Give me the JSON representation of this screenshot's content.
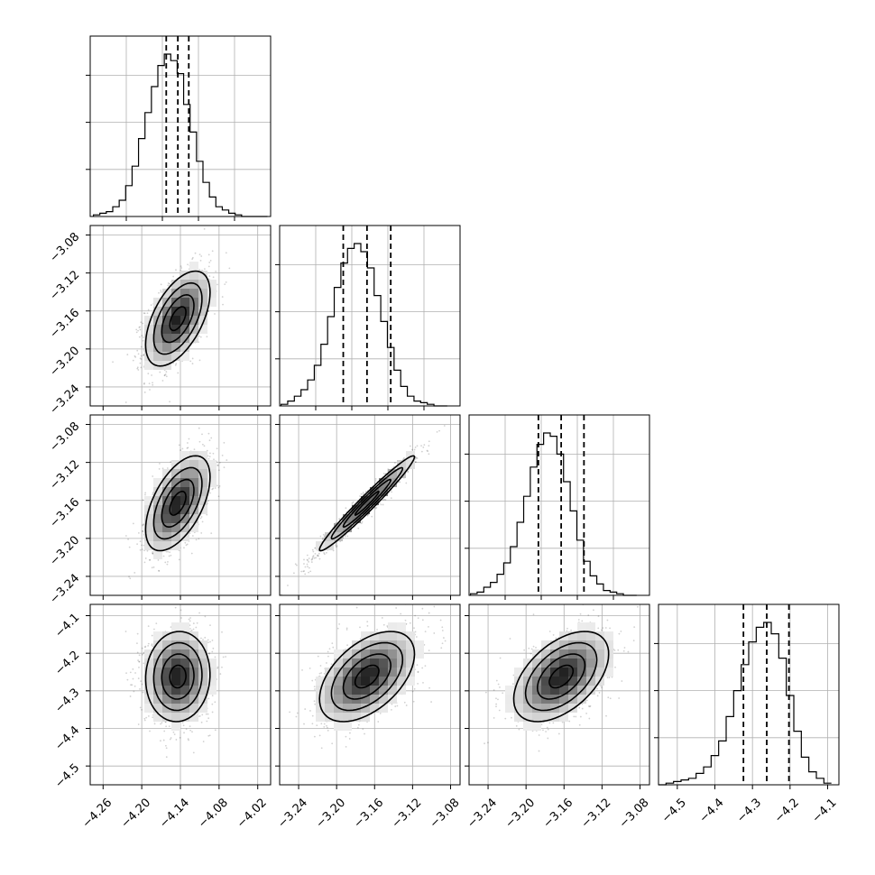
{
  "figure": {
    "type": "corner"
  },
  "chart_data": [
    {
      "type": "histogram",
      "panel": "diag-0",
      "variable_index": 0,
      "xlim": [
        -4.28,
        -4.0
      ],
      "bins": [
        -4.27,
        -4.26,
        -4.25,
        -4.24,
        -4.23,
        -4.22,
        -4.21,
        -4.2,
        -4.19,
        -4.18,
        -4.17,
        -4.16,
        -4.15,
        -4.14,
        -4.13,
        -4.12,
        -4.11,
        -4.1,
        -4.09,
        -4.08,
        -4.07,
        -4.06,
        -4.05,
        -4.04,
        -4.03,
        -4.02,
        -4.01
      ],
      "counts": [
        0.01,
        0.02,
        0.03,
        0.06,
        0.1,
        0.19,
        0.31,
        0.48,
        0.64,
        0.8,
        0.93,
        1.0,
        0.96,
        0.88,
        0.69,
        0.52,
        0.34,
        0.21,
        0.12,
        0.06,
        0.04,
        0.02,
        0.01,
        0.0,
        0.0,
        0.0,
        0.0
      ],
      "quantiles": [
        -4.162,
        -4.144,
        -4.127
      ],
      "x_ticks": [],
      "y_ticks": [
        0.29,
        0.58,
        0.87
      ]
    },
    {
      "type": "histogram",
      "panel": "diag-1",
      "variable_index": 1,
      "xlim": [
        -3.26,
        -3.07
      ],
      "bins": [
        -3.255,
        -3.248,
        -3.241,
        -3.234,
        -3.227,
        -3.22,
        -3.213,
        -3.206,
        -3.199,
        -3.192,
        -3.185,
        -3.178,
        -3.171,
        -3.164,
        -3.157,
        -3.15,
        -3.143,
        -3.136,
        -3.129,
        -3.122,
        -3.115,
        -3.108,
        -3.101,
        -3.094,
        -3.087,
        -3.08
      ],
      "counts": [
        0.01,
        0.03,
        0.06,
        0.1,
        0.16,
        0.25,
        0.38,
        0.55,
        0.73,
        0.88,
        0.97,
        1.0,
        0.95,
        0.85,
        0.68,
        0.52,
        0.36,
        0.22,
        0.12,
        0.06,
        0.03,
        0.02,
        0.01,
        0.0,
        0.0
      ],
      "quantiles": [
        -3.193,
        -3.168,
        -3.143
      ],
      "x_ticks": [],
      "y_ticks": [
        0.29,
        0.58,
        0.87
      ]
    },
    {
      "type": "histogram",
      "panel": "diag-2",
      "variable_index": 2,
      "xlim": [
        -3.26,
        -3.07
      ],
      "bins": [
        -3.255,
        -3.248,
        -3.241,
        -3.234,
        -3.227,
        -3.22,
        -3.213,
        -3.206,
        -3.199,
        -3.192,
        -3.185,
        -3.178,
        -3.171,
        -3.164,
        -3.157,
        -3.15,
        -3.143,
        -3.136,
        -3.129,
        -3.122,
        -3.115,
        -3.108,
        -3.101,
        -3.094,
        -3.087,
        -3.08
      ],
      "counts": [
        0.01,
        0.02,
        0.05,
        0.08,
        0.13,
        0.2,
        0.3,
        0.45,
        0.61,
        0.79,
        0.93,
        1.0,
        0.98,
        0.87,
        0.7,
        0.52,
        0.34,
        0.21,
        0.12,
        0.07,
        0.03,
        0.02,
        0.01,
        0.0,
        0.0
      ],
      "quantiles": [
        -3.187,
        -3.163,
        -3.139
      ],
      "x_ticks": [],
      "y_ticks": [
        0.29,
        0.58,
        0.87
      ]
    },
    {
      "type": "histogram",
      "panel": "diag-3",
      "variable_index": 3,
      "xlim": [
        -4.55,
        -4.07
      ],
      "bins": [
        -4.54,
        -4.52,
        -4.5,
        -4.48,
        -4.46,
        -4.44,
        -4.42,
        -4.4,
        -4.38,
        -4.36,
        -4.34,
        -4.32,
        -4.3,
        -4.28,
        -4.26,
        -4.24,
        -4.22,
        -4.2,
        -4.18,
        -4.16,
        -4.14,
        -4.12,
        -4.1,
        -4.08
      ],
      "counts": [
        0.0,
        0.01,
        0.02,
        0.03,
        0.04,
        0.07,
        0.11,
        0.18,
        0.27,
        0.42,
        0.58,
        0.74,
        0.88,
        0.97,
        1.0,
        0.93,
        0.78,
        0.55,
        0.33,
        0.17,
        0.08,
        0.04,
        0.01
      ],
      "quantiles": [
        -4.324,
        -4.262,
        -4.203
      ],
      "x_ticks": [
        -4.5,
        -4.4,
        -4.3,
        -4.2,
        -4.1
      ],
      "x_tick_labels": [
        "−4.5",
        "−4.4",
        "−4.3",
        "−4.2",
        "−4.1"
      ],
      "y_ticks": [
        0.29,
        0.58,
        0.87
      ]
    },
    {
      "type": "scatter",
      "panel": "r1c0",
      "x_var": 0,
      "y_var": 1,
      "xlim": [
        -4.28,
        -4.0
      ],
      "ylim": [
        -3.26,
        -3.07
      ],
      "center": [
        -4.144,
        -3.168
      ],
      "sd": [
        0.025,
        0.025
      ],
      "rho": 0.55,
      "x_ticks": [
        -4.26,
        -4.2,
        -4.14,
        -4.08,
        -4.02
      ],
      "y_ticks": [
        -3.08,
        -3.12,
        -3.16,
        -3.2,
        -3.24
      ],
      "y_tick_labels": [
        "−3.08",
        "−3.12",
        "−3.16",
        "−3.20",
        "−3.24"
      ]
    },
    {
      "type": "scatter",
      "panel": "r2c0",
      "x_var": 0,
      "y_var": 2,
      "xlim": [
        -4.28,
        -4.0
      ],
      "ylim": [
        -3.26,
        -3.07
      ],
      "center": [
        -4.144,
        -3.163
      ],
      "sd": [
        0.025,
        0.025
      ],
      "rho": 0.55,
      "x_ticks": [
        -4.26,
        -4.2,
        -4.14,
        -4.08,
        -4.02
      ],
      "y_ticks": [
        -3.08,
        -3.12,
        -3.16,
        -3.2,
        -3.24
      ],
      "y_tick_labels": [
        "−3.08",
        "−3.12",
        "−3.16",
        "−3.20",
        "−3.24"
      ]
    },
    {
      "type": "scatter",
      "panel": "r2c1",
      "x_var": 1,
      "y_var": 2,
      "xlim": [
        -3.26,
        -3.07
      ],
      "ylim": [
        -3.26,
        -3.07
      ],
      "center": [
        -3.168,
        -3.163
      ],
      "sd": [
        0.025,
        0.025
      ],
      "rho": 0.975,
      "x_ticks": [
        -3.24,
        -3.2,
        -3.16,
        -3.12,
        -3.08
      ],
      "y_ticks": [
        -3.08,
        -3.12,
        -3.16,
        -3.2,
        -3.24
      ]
    },
    {
      "type": "scatter",
      "panel": "r3c0",
      "x_var": 0,
      "y_var": 3,
      "xlim": [
        -4.28,
        -4.0
      ],
      "ylim": [
        -4.55,
        -4.07
      ],
      "center": [
        -4.144,
        -4.262
      ],
      "sd": [
        0.025,
        0.06
      ],
      "rho": 0.05,
      "x_ticks": [
        -4.26,
        -4.2,
        -4.14,
        -4.08,
        -4.02
      ],
      "x_tick_labels": [
        "−4.26",
        "−4.20",
        "−4.14",
        "−4.08",
        "−4.02"
      ],
      "y_ticks": [
        -4.1,
        -4.2,
        -4.3,
        -4.4,
        -4.5
      ],
      "y_tick_labels": [
        "−4.1",
        "−4.2",
        "−4.3",
        "−4.4",
        "−4.5"
      ]
    },
    {
      "type": "scatter",
      "panel": "r3c1",
      "x_var": 1,
      "y_var": 3,
      "xlim": [
        -3.26,
        -3.07
      ],
      "ylim": [
        -4.55,
        -4.07
      ],
      "center": [
        -3.168,
        -4.262
      ],
      "sd": [
        0.025,
        0.06
      ],
      "rho": 0.5,
      "x_ticks": [
        -3.24,
        -3.2,
        -3.16,
        -3.12,
        -3.08
      ],
      "x_tick_labels": [
        "−3.24",
        "−3.20",
        "−3.16",
        "−3.12",
        "−3.08"
      ],
      "y_ticks": [
        -4.1,
        -4.2,
        -4.3,
        -4.4,
        -4.5
      ]
    },
    {
      "type": "scatter",
      "panel": "r3c2",
      "x_var": 2,
      "y_var": 3,
      "xlim": [
        -3.26,
        -3.07
      ],
      "ylim": [
        -4.55,
        -4.07
      ],
      "center": [
        -3.163,
        -4.262
      ],
      "sd": [
        0.025,
        0.06
      ],
      "rho": 0.5,
      "x_ticks": [
        -3.24,
        -3.2,
        -3.16,
        -3.12,
        -3.08
      ],
      "x_tick_labels": [
        "−3.24",
        "−3.20",
        "−3.16",
        "−3.12",
        "−3.08"
      ],
      "y_ticks": [
        -4.1,
        -4.2,
        -4.3,
        -4.4,
        -4.5
      ]
    }
  ],
  "grid": true
}
